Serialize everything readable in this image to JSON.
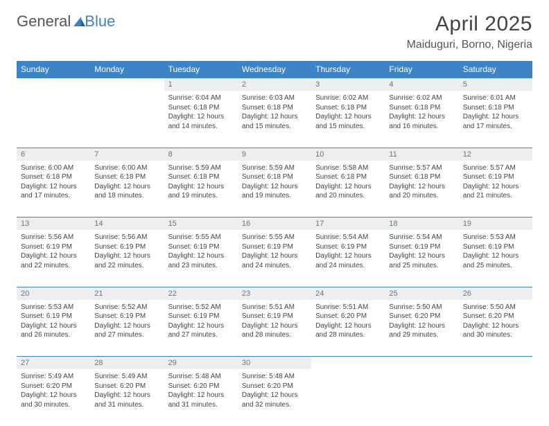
{
  "brand": {
    "part1": "General",
    "part2": "Blue"
  },
  "title": "April 2025",
  "location": "Maiduguri, Borno, Nigeria",
  "colors": {
    "header_bg": "#3d84c6",
    "header_text": "#ffffff",
    "daynum_bg": "#eceef0",
    "daynum_text": "#6c7378",
    "rule": "#3d84c6",
    "body_text": "#444444"
  },
  "fonts": {
    "title_size": 30,
    "location_size": 16,
    "dayhead_size": 12,
    "cell_size": 10
  },
  "calendar": {
    "day_headers": [
      "Sunday",
      "Monday",
      "Tuesday",
      "Wednesday",
      "Thursday",
      "Friday",
      "Saturday"
    ],
    "weeks": [
      [
        null,
        null,
        {
          "n": "1",
          "sr": "6:04 AM",
          "ss": "6:18 PM",
          "dl": "12 hours and 14 minutes."
        },
        {
          "n": "2",
          "sr": "6:03 AM",
          "ss": "6:18 PM",
          "dl": "12 hours and 15 minutes."
        },
        {
          "n": "3",
          "sr": "6:02 AM",
          "ss": "6:18 PM",
          "dl": "12 hours and 15 minutes."
        },
        {
          "n": "4",
          "sr": "6:02 AM",
          "ss": "6:18 PM",
          "dl": "12 hours and 16 minutes."
        },
        {
          "n": "5",
          "sr": "6:01 AM",
          "ss": "6:18 PM",
          "dl": "12 hours and 17 minutes."
        }
      ],
      [
        {
          "n": "6",
          "sr": "6:00 AM",
          "ss": "6:18 PM",
          "dl": "12 hours and 17 minutes."
        },
        {
          "n": "7",
          "sr": "6:00 AM",
          "ss": "6:18 PM",
          "dl": "12 hours and 18 minutes."
        },
        {
          "n": "8",
          "sr": "5:59 AM",
          "ss": "6:18 PM",
          "dl": "12 hours and 19 minutes."
        },
        {
          "n": "9",
          "sr": "5:59 AM",
          "ss": "6:18 PM",
          "dl": "12 hours and 19 minutes."
        },
        {
          "n": "10",
          "sr": "5:58 AM",
          "ss": "6:18 PM",
          "dl": "12 hours and 20 minutes."
        },
        {
          "n": "11",
          "sr": "5:57 AM",
          "ss": "6:18 PM",
          "dl": "12 hours and 20 minutes."
        },
        {
          "n": "12",
          "sr": "5:57 AM",
          "ss": "6:19 PM",
          "dl": "12 hours and 21 minutes."
        }
      ],
      [
        {
          "n": "13",
          "sr": "5:56 AM",
          "ss": "6:19 PM",
          "dl": "12 hours and 22 minutes."
        },
        {
          "n": "14",
          "sr": "5:56 AM",
          "ss": "6:19 PM",
          "dl": "12 hours and 22 minutes."
        },
        {
          "n": "15",
          "sr": "5:55 AM",
          "ss": "6:19 PM",
          "dl": "12 hours and 23 minutes."
        },
        {
          "n": "16",
          "sr": "5:55 AM",
          "ss": "6:19 PM",
          "dl": "12 hours and 24 minutes."
        },
        {
          "n": "17",
          "sr": "5:54 AM",
          "ss": "6:19 PM",
          "dl": "12 hours and 24 minutes."
        },
        {
          "n": "18",
          "sr": "5:54 AM",
          "ss": "6:19 PM",
          "dl": "12 hours and 25 minutes."
        },
        {
          "n": "19",
          "sr": "5:53 AM",
          "ss": "6:19 PM",
          "dl": "12 hours and 25 minutes."
        }
      ],
      [
        {
          "n": "20",
          "sr": "5:53 AM",
          "ss": "6:19 PM",
          "dl": "12 hours and 26 minutes."
        },
        {
          "n": "21",
          "sr": "5:52 AM",
          "ss": "6:19 PM",
          "dl": "12 hours and 27 minutes."
        },
        {
          "n": "22",
          "sr": "5:52 AM",
          "ss": "6:19 PM",
          "dl": "12 hours and 27 minutes."
        },
        {
          "n": "23",
          "sr": "5:51 AM",
          "ss": "6:19 PM",
          "dl": "12 hours and 28 minutes."
        },
        {
          "n": "24",
          "sr": "5:51 AM",
          "ss": "6:20 PM",
          "dl": "12 hours and 28 minutes."
        },
        {
          "n": "25",
          "sr": "5:50 AM",
          "ss": "6:20 PM",
          "dl": "12 hours and 29 minutes."
        },
        {
          "n": "26",
          "sr": "5:50 AM",
          "ss": "6:20 PM",
          "dl": "12 hours and 30 minutes."
        }
      ],
      [
        {
          "n": "27",
          "sr": "5:49 AM",
          "ss": "6:20 PM",
          "dl": "12 hours and 30 minutes."
        },
        {
          "n": "28",
          "sr": "5:49 AM",
          "ss": "6:20 PM",
          "dl": "12 hours and 31 minutes."
        },
        {
          "n": "29",
          "sr": "5:48 AM",
          "ss": "6:20 PM",
          "dl": "12 hours and 31 minutes."
        },
        {
          "n": "30",
          "sr": "5:48 AM",
          "ss": "6:20 PM",
          "dl": "12 hours and 32 minutes."
        },
        null,
        null,
        null
      ]
    ],
    "labels": {
      "sunrise": "Sunrise:",
      "sunset": "Sunset:",
      "daylight": "Daylight:"
    }
  }
}
